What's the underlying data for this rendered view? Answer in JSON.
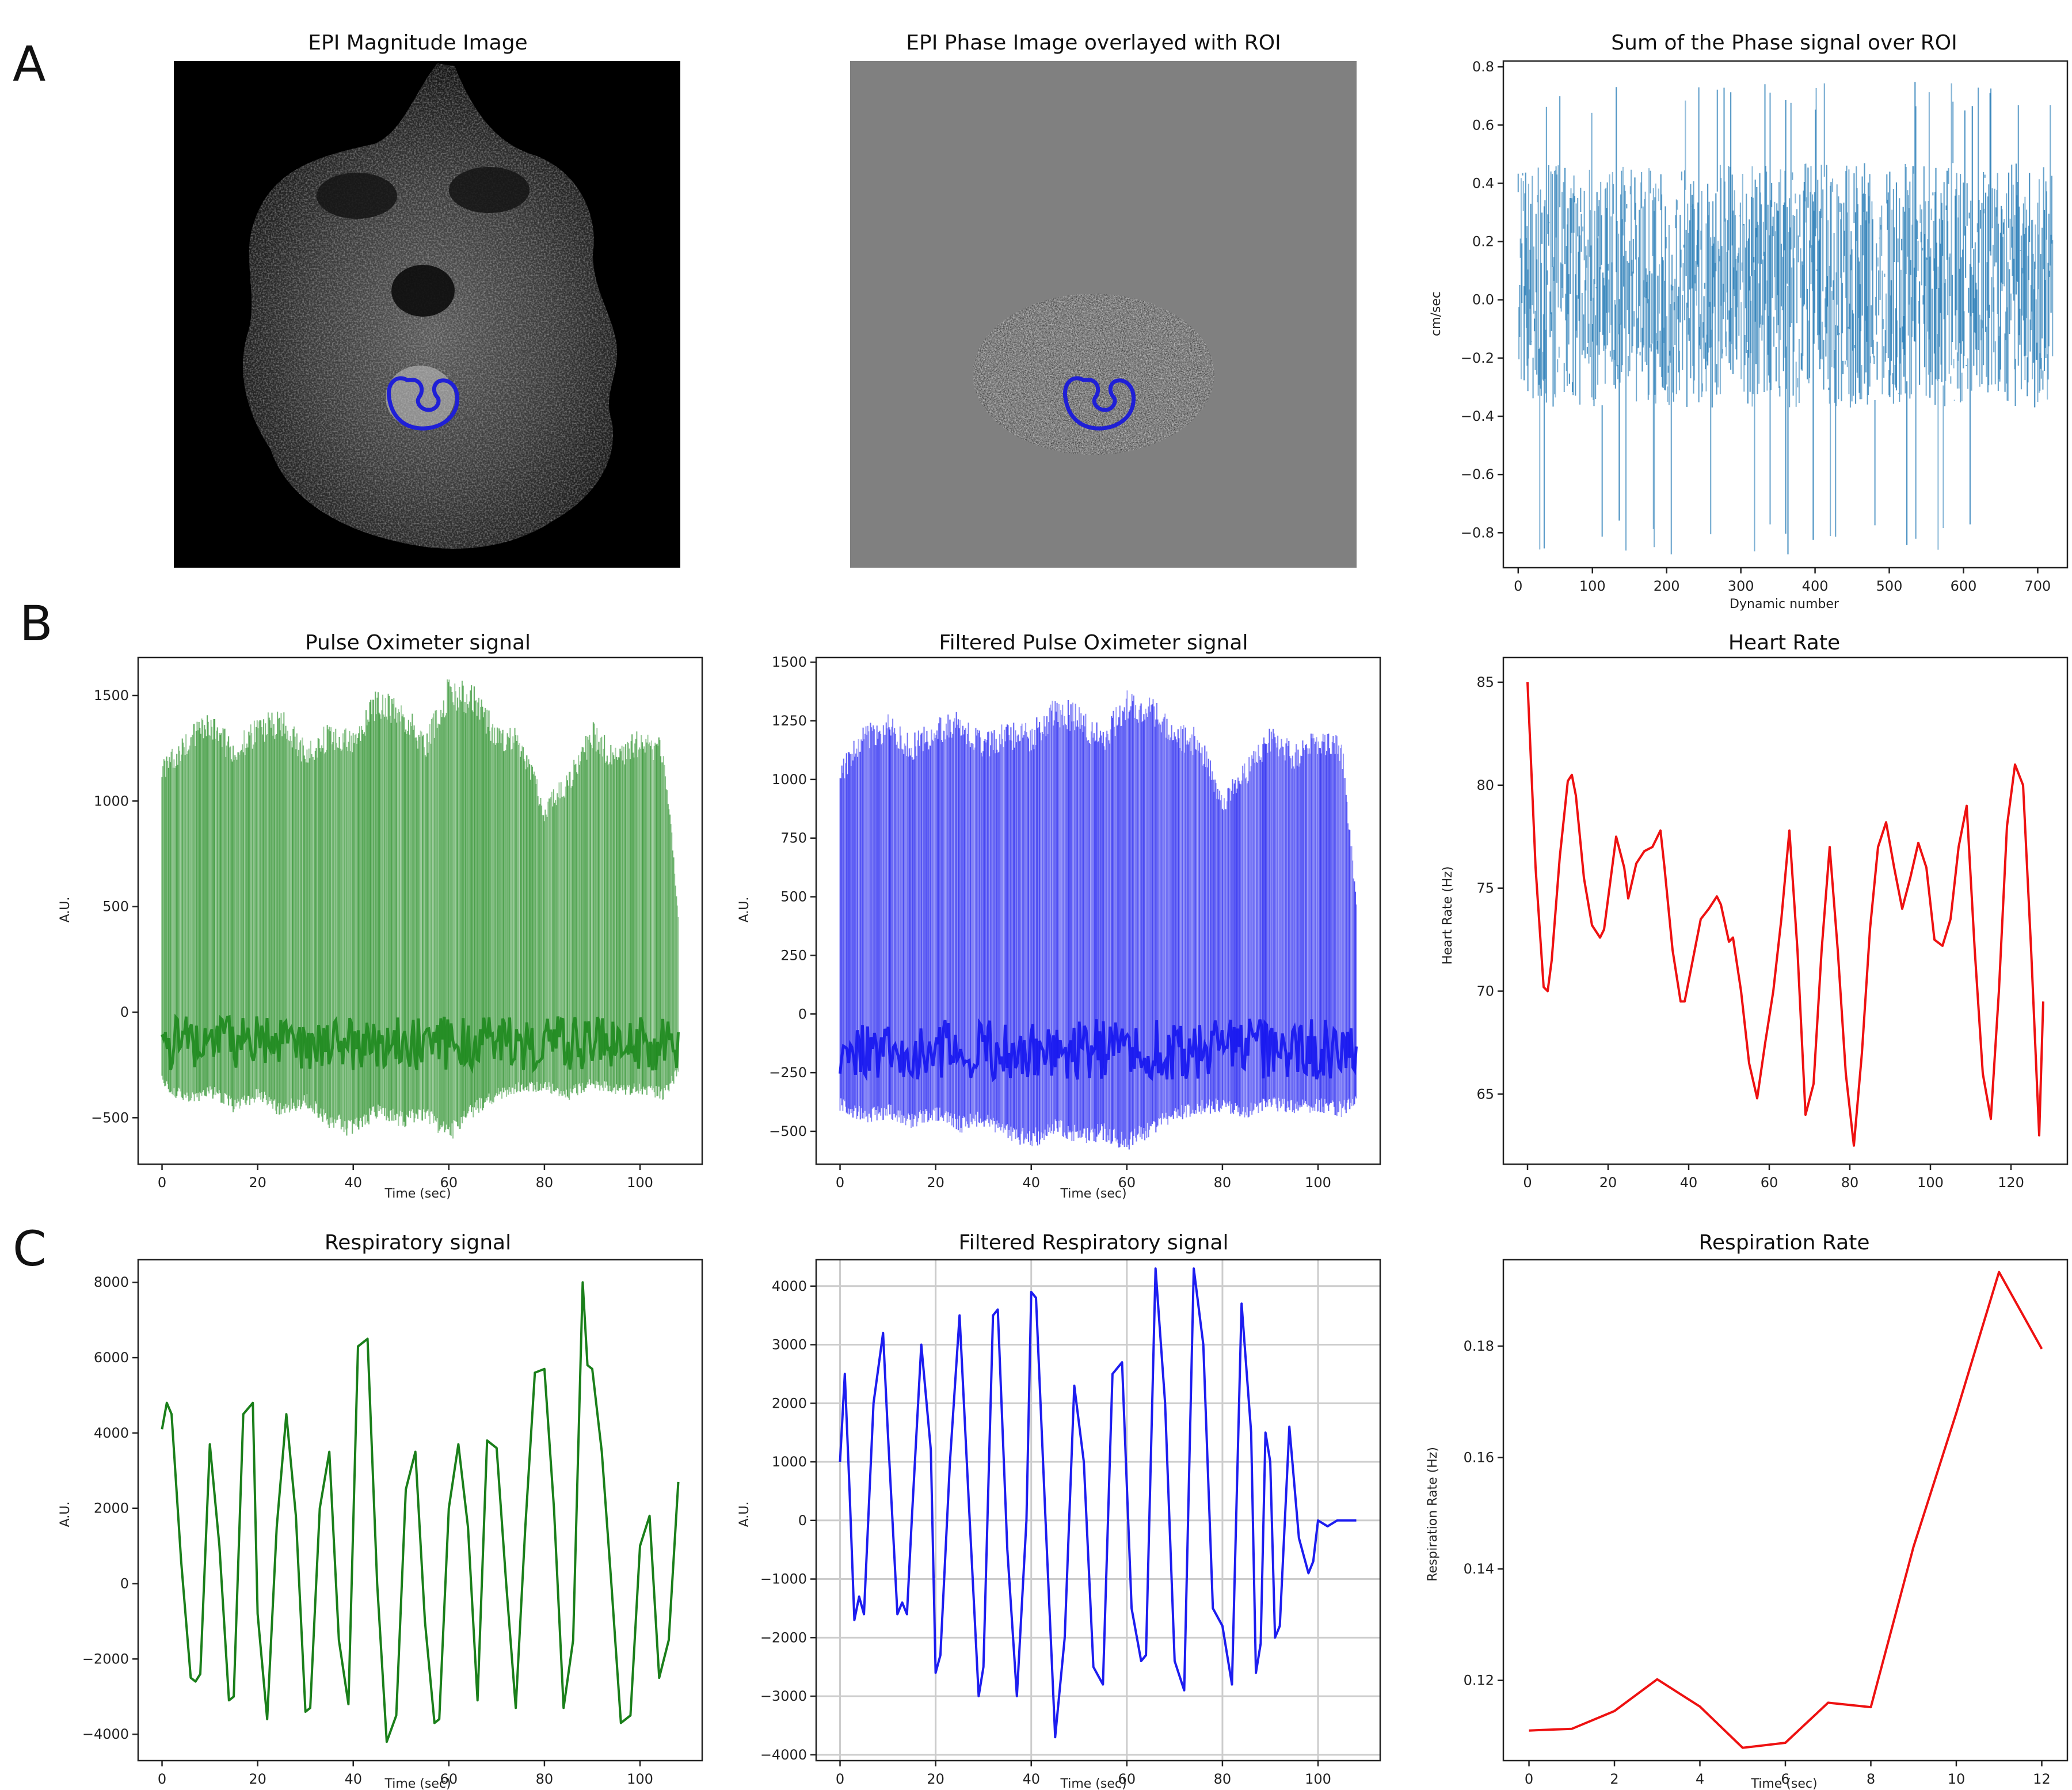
{
  "panel_letters": [
    "A",
    "B",
    "C"
  ],
  "images": [
    {
      "title": "EPI Magnitude Image",
      "background": "#000000",
      "roi_color": "#1f1fd6"
    },
    {
      "title": "EPI Phase Image overlayed with ROI",
      "background": "#808080",
      "roi_color": "#1f1fd6"
    }
  ],
  "chart_data": [
    {
      "id": "phase_sum",
      "type": "line",
      "title": "Sum of the Phase signal over ROI",
      "xlabel": "Dynamic number",
      "ylabel": "cm/sec",
      "xlim": [
        -20,
        740
      ],
      "ylim": [
        -0.92,
        0.82
      ],
      "xticks": [
        0,
        100,
        200,
        300,
        400,
        500,
        600,
        700
      ],
      "yticks": [
        -0.8,
        -0.6,
        -0.4,
        -0.2,
        0.0,
        0.2,
        0.4,
        0.6,
        0.8
      ],
      "ytick_labels": [
        "−0.8",
        "−0.6",
        "−0.4",
        "−0.2",
        "0.0",
        "0.2",
        "0.4",
        "0.6",
        "0.8"
      ],
      "color": "#1f77b4",
      "grid": false,
      "dense_signal": {
        "x_range": [
          0,
          720
        ],
        "count": 720,
        "mid": 0.05,
        "amp": 0.42,
        "extreme_max": 0.75,
        "extreme_min": -0.88
      }
    },
    {
      "id": "pulse_ox",
      "type": "line",
      "title": "Pulse Oximeter signal",
      "xlabel": "Time (sec)",
      "ylabel": "A.U.",
      "xlim": [
        -5,
        113
      ],
      "ylim": [
        -720,
        1680
      ],
      "xticks": [
        0,
        20,
        40,
        60,
        80,
        100
      ],
      "yticks": [
        -500,
        0,
        500,
        1000,
        1500
      ],
      "ytick_labels": [
        "−500",
        "0",
        "500",
        "1000",
        "1500"
      ],
      "color": "#1e8a1e",
      "grid": false,
      "envelope": {
        "x": [
          0,
          5,
          10,
          15,
          20,
          25,
          30,
          35,
          40,
          45,
          50,
          55,
          60,
          65,
          70,
          75,
          80,
          85,
          90,
          95,
          100,
          105,
          108
        ],
        "upper": [
          1200,
          1350,
          1420,
          1300,
          1400,
          1450,
          1280,
          1380,
          1350,
          1550,
          1500,
          1320,
          1600,
          1560,
          1380,
          1340,
          1000,
          1150,
          1380,
          1250,
          1350,
          1300,
          500
        ],
        "lower": [
          -350,
          -450,
          -400,
          -480,
          -420,
          -500,
          -450,
          -550,
          -600,
          -500,
          -550,
          -520,
          -620,
          -500,
          -420,
          -380,
          -380,
          -420,
          -360,
          -400,
          -390,
          -420,
          -300
        ]
      }
    },
    {
      "id": "pulse_ox_filtered",
      "type": "line",
      "title": "Filtered Pulse Oximeter signal",
      "xlabel": "Time (sec)",
      "ylabel": "A.U.",
      "xlim": [
        -5,
        113
      ],
      "ylim": [
        -640,
        1520
      ],
      "xticks": [
        0,
        20,
        40,
        60,
        80,
        100
      ],
      "yticks": [
        -500,
        -250,
        0,
        250,
        500,
        750,
        1000,
        1250,
        1500
      ],
      "ytick_labels": [
        "−500",
        "−250",
        "0",
        "250",
        "500",
        "750",
        "1000",
        "1250",
        "1500"
      ],
      "color": "#1515f0",
      "grid": false,
      "envelope": {
        "x": [
          0,
          5,
          10,
          15,
          20,
          25,
          30,
          35,
          40,
          45,
          50,
          55,
          60,
          65,
          70,
          75,
          80,
          85,
          90,
          95,
          100,
          105,
          108
        ],
        "upper": [
          1080,
          1230,
          1290,
          1200,
          1260,
          1300,
          1200,
          1250,
          1240,
          1350,
          1330,
          1220,
          1390,
          1360,
          1250,
          1220,
          950,
          1080,
          1240,
          1150,
          1220,
          1180,
          500
        ],
        "lower": [
          -420,
          -470,
          -450,
          -490,
          -460,
          -510,
          -480,
          -540,
          -580,
          -520,
          -560,
          -540,
          -600,
          -520,
          -460,
          -430,
          -420,
          -450,
          -410,
          -430,
          -420,
          -440,
          -380
        ]
      }
    },
    {
      "id": "heart_rate",
      "type": "line",
      "title": "Heart Rate",
      "xlabel": "",
      "ylabel": "Heart Rate (Hz)",
      "xlim": [
        -6,
        134
      ],
      "ylim": [
        61.6,
        86.2
      ],
      "xticks": [
        0,
        20,
        40,
        60,
        80,
        100,
        120
      ],
      "yticks": [
        65,
        70,
        75,
        80,
        85
      ],
      "color": "#ee1111",
      "grid": false,
      "x": [
        0,
        2,
        4,
        5,
        6,
        8,
        10,
        11,
        12,
        14,
        16,
        18,
        19,
        20,
        22,
        24,
        25,
        27,
        29,
        31,
        33,
        34,
        36,
        38,
        39,
        41,
        43,
        45,
        47,
        48,
        49,
        50,
        51,
        53,
        55,
        57,
        59,
        61,
        63,
        65,
        67,
        69,
        71,
        73,
        75,
        77,
        79,
        81,
        83,
        85,
        87,
        89,
        91,
        93,
        95,
        97,
        99,
        101,
        103,
        105,
        107,
        109,
        111,
        113,
        115,
        117,
        119,
        121,
        123,
        125,
        127,
        128
      ],
      "y": [
        85.0,
        76.0,
        70.2,
        70.0,
        71.5,
        76.5,
        80.2,
        80.5,
        79.5,
        75.5,
        73.2,
        72.6,
        73.0,
        74.5,
        77.5,
        76.0,
        74.5,
        76.2,
        76.8,
        77.0,
        77.8,
        76.0,
        72.0,
        69.5,
        69.5,
        71.5,
        73.5,
        74.0,
        74.6,
        74.2,
        73.3,
        72.4,
        72.6,
        70.0,
        66.5,
        64.8,
        67.5,
        70.0,
        73.5,
        77.8,
        72.0,
        64.0,
        65.5,
        72.0,
        77.0,
        72.0,
        66.0,
        62.5,
        67.0,
        73.0,
        77.0,
        78.2,
        76.0,
        74.0,
        75.5,
        77.2,
        76.0,
        72.5,
        72.2,
        73.5,
        77.0,
        79.0,
        72.0,
        66.0,
        63.8,
        70.0,
        78.0,
        81.0,
        80.0,
        72.0,
        63.0,
        69.5
      ]
    },
    {
      "id": "resp",
      "type": "line",
      "title": "Respiratory signal",
      "xlabel": "Time (sec)",
      "ylabel": "A.U.",
      "xlim": [
        -5,
        113
      ],
      "ylim": [
        -4700,
        8600
      ],
      "xticks": [
        0,
        20,
        40,
        60,
        80,
        100
      ],
      "yticks": [
        -4000,
        -2000,
        0,
        2000,
        4000,
        6000,
        8000
      ],
      "ytick_labels": [
        "−4000",
        "−2000",
        "0",
        "2000",
        "4000",
        "6000",
        "8000"
      ],
      "color": "#1a7f1a",
      "grid": false,
      "x": [
        0,
        1,
        2,
        4,
        6,
        7,
        8,
        10,
        12,
        14,
        15,
        17,
        19,
        20,
        22,
        24,
        26,
        28,
        30,
        31,
        33,
        35,
        37,
        39,
        41,
        43,
        45,
        47,
        49,
        51,
        53,
        55,
        57,
        58,
        60,
        62,
        64,
        66,
        68,
        70,
        72,
        74,
        76,
        78,
        80,
        82,
        84,
        86,
        88,
        89,
        90,
        92,
        94,
        96,
        98,
        100,
        102,
        104,
        106,
        108
      ],
      "y": [
        4100,
        4800,
        4500,
        600,
        -2500,
        -2600,
        -2400,
        3700,
        1000,
        -3100,
        -3000,
        4500,
        4800,
        -800,
        -3600,
        1500,
        4500,
        1800,
        -3400,
        -3300,
        2000,
        3500,
        -1500,
        -3200,
        6300,
        6500,
        0,
        -4200,
        -3500,
        2500,
        3500,
        -1000,
        -3700,
        -3600,
        2000,
        3700,
        1500,
        -3100,
        3800,
        3600,
        0,
        -3300,
        1500,
        5600,
        5700,
        2000,
        -3300,
        -1500,
        8000,
        5800,
        5700,
        3500,
        0,
        -3700,
        -3500,
        1000,
        1800,
        -2500,
        -1500,
        2700
      ]
    },
    {
      "id": "resp_filtered",
      "type": "line",
      "title": "Filtered Respiratory signal",
      "xlabel": "Time (sec)",
      "ylabel": "A.U.",
      "xlim": [
        -5,
        113
      ],
      "ylim": [
        -4100,
        4450
      ],
      "xticks": [
        0,
        20,
        40,
        60,
        80,
        100
      ],
      "yticks": [
        -4000,
        -3000,
        -2000,
        -1000,
        0,
        1000,
        2000,
        3000,
        4000
      ],
      "ytick_labels": [
        "−4000",
        "−3000",
        "−2000",
        "−1000",
        "0",
        "1000",
        "2000",
        "3000",
        "4000"
      ],
      "color": "#1d1df0",
      "grid": true,
      "x": [
        0,
        1,
        2,
        3,
        4,
        5,
        6,
        7,
        9,
        10,
        12,
        13,
        14,
        15,
        17,
        19,
        20,
        21,
        23,
        25,
        27,
        29,
        30,
        32,
        33,
        35,
        37,
        39,
        40,
        41,
        43,
        45,
        47,
        49,
        51,
        53,
        55,
        57,
        59,
        61,
        63,
        64,
        66,
        68,
        70,
        72,
        74,
        76,
        78,
        80,
        82,
        84,
        86,
        87,
        88,
        89,
        90,
        91,
        92,
        94,
        96,
        98,
        99,
        100,
        102,
        103,
        104,
        106,
        108
      ],
      "y": [
        1000,
        2500,
        500,
        -1700,
        -1300,
        -1600,
        200,
        2000,
        3200,
        1500,
        -1600,
        -1400,
        -1600,
        0,
        3000,
        1200,
        -2600,
        -2300,
        1000,
        3500,
        200,
        -3000,
        -2500,
        3500,
        3600,
        -500,
        -3000,
        0,
        3900,
        3800,
        0,
        -3700,
        -2000,
        2300,
        1000,
        -2500,
        -2800,
        2500,
        2700,
        -1500,
        -2400,
        -2300,
        4300,
        2000,
        -2400,
        -2900,
        4300,
        3000,
        -1500,
        -1800,
        -2800,
        3700,
        1500,
        -2600,
        -2100,
        1500,
        1000,
        -2000,
        -1800,
        1600,
        -300,
        -900,
        -700,
        0,
        -100,
        -50,
        0,
        0,
        0
      ]
    },
    {
      "id": "resp_rate",
      "type": "line",
      "title": "Respiration Rate",
      "xlabel": "Time (sec)",
      "ylabel": "Respiration Rate (Hz)",
      "xlim": [
        -0.6,
        12.6
      ],
      "ylim": [
        0.1056,
        0.1955
      ],
      "xticks": [
        0,
        2,
        4,
        6,
        8,
        10,
        12
      ],
      "yticks": [
        0.12,
        0.14,
        0.16,
        0.18
      ],
      "color": "#ee1111",
      "grid": false,
      "x": [
        0,
        1,
        2,
        3,
        4,
        5,
        6,
        7,
        8,
        9,
        10,
        11,
        12
      ],
      "y": [
        0.111,
        0.1113,
        0.1145,
        0.1202,
        0.1153,
        0.1079,
        0.1088,
        0.116,
        0.1152,
        0.144,
        0.168,
        0.1933,
        0.1795
      ]
    }
  ]
}
